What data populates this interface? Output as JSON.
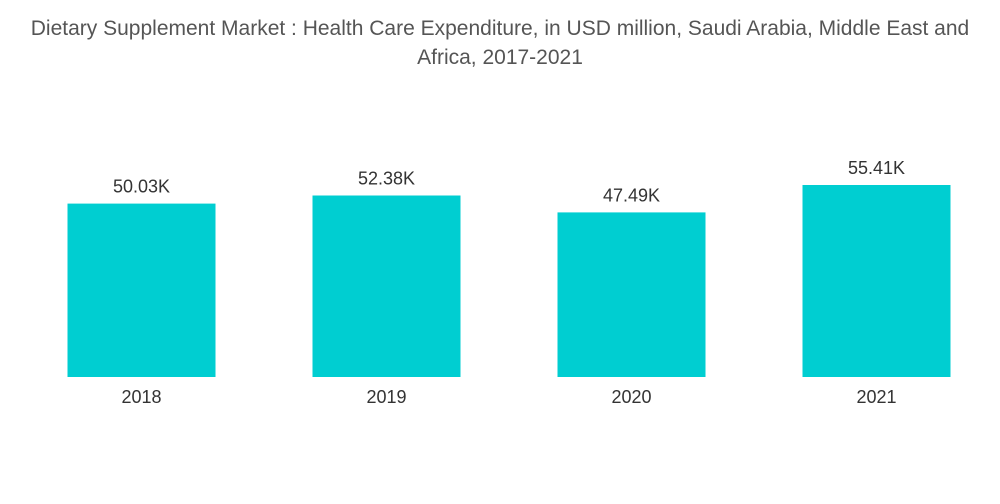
{
  "chart_data": {
    "type": "bar",
    "title": "Dietary Supplement Market : Health Care Expenditure, in USD million, Saudi Arabia, Middle East and Africa, 2017-2021",
    "categories": [
      "2018",
      "2019",
      "2020",
      "2021"
    ],
    "values": [
      50.03,
      52.38,
      47.49,
      55.41
    ],
    "value_labels": [
      "50.03K",
      "52.38K",
      "47.49K",
      "55.41K"
    ],
    "xlabel": "",
    "ylabel": "",
    "ylim": [
      0,
      55.41
    ],
    "grid": false,
    "legend": "none",
    "bar_color": "#00CED1"
  }
}
